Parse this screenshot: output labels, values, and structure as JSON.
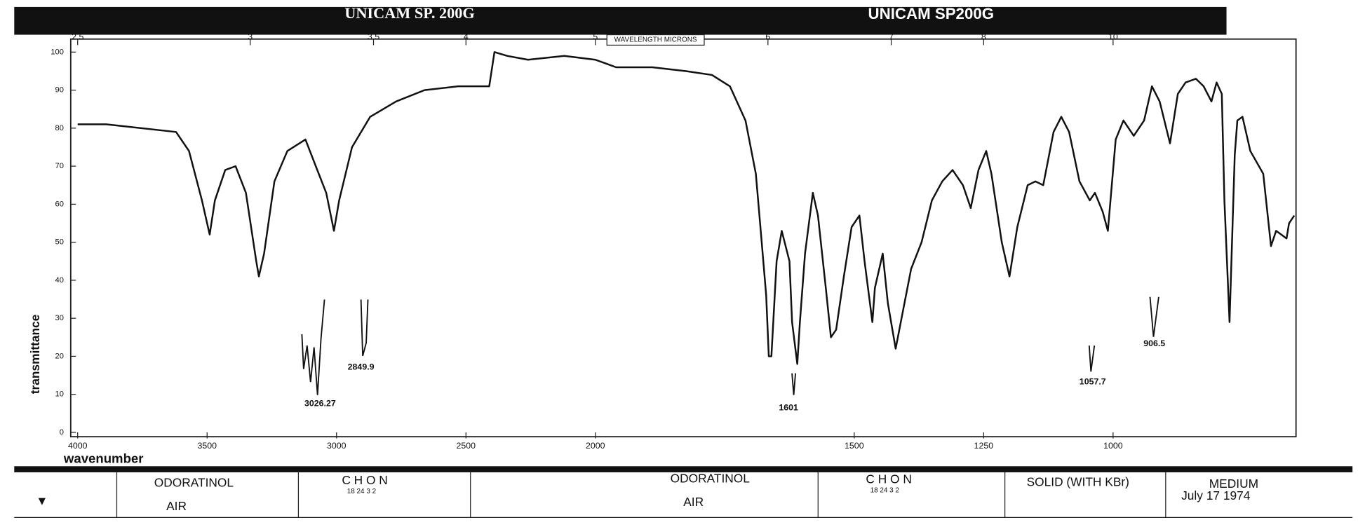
{
  "header": {
    "left": "UNICAM SP. 200G",
    "right": "UNICAM SP200G"
  },
  "chart_data": {
    "type": "line",
    "y_label": "transmittance",
    "x_label": "wavenumber",
    "x2_label": "WAVELENGTH MICRONS",
    "x": [
      4000,
      3890,
      3620,
      3570,
      3520,
      3490,
      3470,
      3430,
      3390,
      3350,
      3310,
      3300,
      3280,
      3240,
      3190,
      3120,
      3080,
      3040,
      3010,
      2990,
      2940,
      2870,
      2770,
      2660,
      2530,
      2410,
      2390,
      2340,
      2260,
      2120,
      2000,
      1980,
      1960,
      1890,
      1825,
      1775,
      1740,
      1710,
      1690,
      1680,
      1670,
      1665,
      1660,
      1650,
      1640,
      1625,
      1620,
      1610,
      1605,
      1595,
      1580,
      1570,
      1555,
      1545,
      1535,
      1520,
      1505,
      1490,
      1480,
      1465,
      1460,
      1445,
      1435,
      1420,
      1410,
      1390,
      1370,
      1350,
      1330,
      1310,
      1290,
      1275,
      1260,
      1245,
      1235,
      1215,
      1200,
      1185,
      1165,
      1150,
      1135,
      1115,
      1100,
      1085,
      1065,
      1045,
      1035,
      1020,
      1010,
      995,
      980,
      960,
      940,
      925,
      910,
      890,
      875,
      860,
      840,
      825,
      810,
      800,
      790,
      785,
      775,
      765,
      760,
      750,
      735,
      710,
      695,
      685,
      665,
      660,
      650
    ],
    "values": [
      81,
      81,
      79,
      74,
      61,
      52,
      61,
      69,
      70,
      63,
      45,
      41,
      47,
      66,
      74,
      77,
      70,
      63,
      53,
      61,
      75,
      83,
      87,
      90,
      91,
      91,
      100,
      99,
      98,
      99,
      98,
      97,
      96,
      96,
      95,
      94,
      91,
      82,
      68,
      52,
      36,
      20,
      20,
      45,
      53,
      45,
      29,
      18,
      29,
      47,
      63,
      57,
      38,
      25,
      27,
      41,
      54,
      57,
      45,
      29,
      38,
      47,
      34,
      22,
      29,
      43,
      50,
      61,
      66,
      69,
      65,
      59,
      69,
      74,
      68,
      50,
      41,
      54,
      65,
      66,
      65,
      79,
      83,
      79,
      66,
      61,
      63,
      58,
      53,
      77,
      82,
      78,
      82,
      91,
      87,
      76,
      89,
      92,
      93,
      91,
      87,
      92,
      89,
      61,
      29,
      73,
      82,
      83,
      74,
      68,
      49,
      53,
      51,
      55,
      57
    ],
    "color": "#111111",
    "xlim": [
      4000,
      650
    ],
    "xscale": {
      "break": 2000,
      "factor": 2
    },
    "xticks": [
      4000,
      3500,
      3000,
      2500,
      2000,
      1500,
      1250,
      1000
    ],
    "x2ticks": [
      2.5,
      3,
      3.5,
      4,
      5,
      6,
      7,
      8,
      10
    ],
    "ylim": [
      0,
      100
    ],
    "yticks": [
      0,
      10,
      20,
      30,
      40,
      50,
      60,
      70,
      80,
      90,
      100
    ],
    "grid": false,
    "annotations": [
      "3026.27",
      "2849.9",
      "1601",
      "1057.7",
      "906.5"
    ]
  },
  "sample": {
    "name": "ODORATINOL",
    "reference": "AIR",
    "formula": "C H O N",
    "formula_counts": "18 24 3 2",
    "phase": "SOLID (WITH KBr)",
    "speed": "MEDIUM",
    "date": "July 17 1974"
  }
}
